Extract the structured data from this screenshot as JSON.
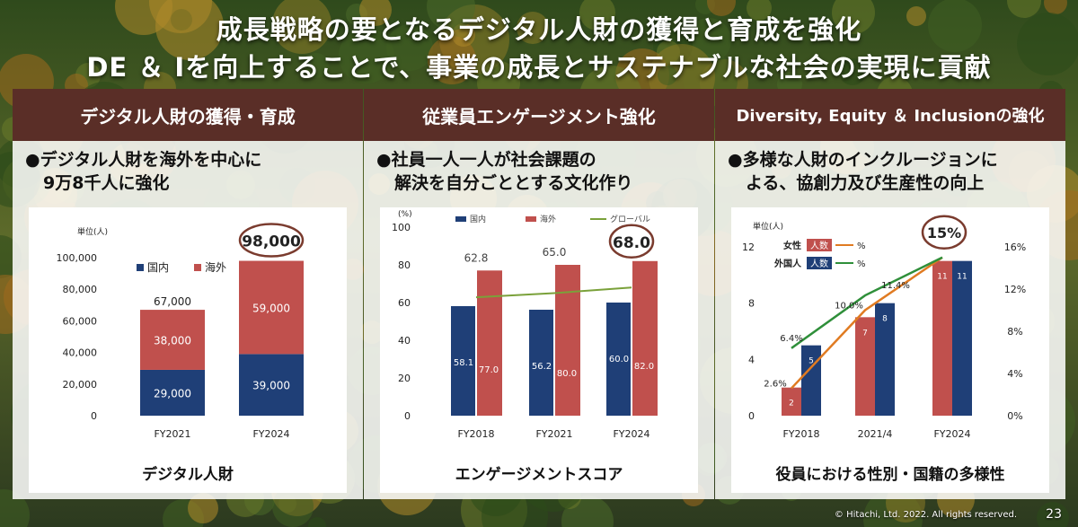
{
  "title": {
    "line1": "成長戦略の要となるデジタル人財の獲得と育成を強化",
    "line2": "DE ＆ Iを向上することで、事業の成長とサステナブルな社会の実現に貢献"
  },
  "panels": [
    {
      "header": "デジタル人財の獲得・育成",
      "bullet_line1": "●デジタル人財を海外を中心に",
      "bullet_line2": "9万8千人に強化",
      "card_label": "デジタル人財"
    },
    {
      "header": "従業員エンゲージメント強化",
      "bullet_line1": "●社員一人一人が社会課題の",
      "bullet_line2": "解決を自分ごととする文化作り",
      "card_label": "エンゲージメントスコア"
    },
    {
      "header": "Diversity, Equity ＆ Inclusionの強化",
      "bullet_line1": "●多様な人財のインクルージョンに",
      "bullet_line2": "よる、協創力及び生産性の向上",
      "card_label": "役員における性別・国籍の多様性"
    }
  ],
  "colors": {
    "domestic": "#1f3f77",
    "overseas": "#c0504d",
    "global_line": "#7aa13a",
    "women_line": "#e07b22",
    "foreign_line": "#2f8f3a",
    "circle": "#7a3b2e",
    "header_bg": "#5a2e27"
  },
  "chart_data": [
    {
      "type": "bar",
      "stacked": true,
      "unit_label": "単位(人)",
      "categories": [
        "FY2021",
        "FY2024"
      ],
      "series": [
        {
          "name": "国内",
          "values": [
            29000,
            39000
          ],
          "labels": [
            "29,000",
            "39,000"
          ]
        },
        {
          "name": "海外",
          "values": [
            38000,
            59000
          ],
          "labels": [
            "38,000",
            "59,000"
          ]
        }
      ],
      "totals": [
        "67,000",
        "98,000"
      ],
      "highlight": "98,000",
      "ylim": [
        0,
        100000
      ],
      "yticks": [
        "0",
        "20,000",
        "40,000",
        "60,000",
        "80,000",
        "100,000"
      ],
      "legend_position": "inside-top-left"
    },
    {
      "type": "bar",
      "unit_label": "(%)",
      "categories": [
        "FY2018",
        "FY2021",
        "FY2024"
      ],
      "series": [
        {
          "name": "国内",
          "values": [
            58.1,
            56.2,
            60.0
          ],
          "labels": [
            "58.1",
            "56.2",
            "60.0"
          ]
        },
        {
          "name": "海外",
          "values": [
            77.0,
            80.0,
            82.0
          ],
          "labels": [
            "77.0",
            "80.0",
            "82.0"
          ]
        },
        {
          "name": "グローバル",
          "type": "line",
          "values": [
            62.8,
            65.0,
            68.0
          ],
          "labels": [
            "62.8",
            "65.0",
            "68.0"
          ]
        }
      ],
      "highlight": "68.0",
      "ylim": [
        0,
        100
      ],
      "yticks": [
        "0",
        "20",
        "40",
        "60",
        "80",
        "100"
      ],
      "legend_position": "top"
    },
    {
      "type": "bar",
      "unit_label": "単位(人)",
      "categories": [
        "FY2018",
        "2021/4",
        "FY2024"
      ],
      "series": [
        {
          "name": "女性",
          "values": [
            2,
            7,
            11
          ],
          "labels": [
            "2",
            "7",
            "11"
          ]
        },
        {
          "name": "外国人",
          "values": [
            5,
            8,
            11
          ],
          "labels": [
            "5",
            "8",
            "11"
          ]
        }
      ],
      "lines": [
        {
          "name": "女性",
          "axis": "right",
          "values": [
            2.6,
            10.0,
            15
          ],
          "labels": [
            "2.6%",
            "10.0%",
            ""
          ]
        },
        {
          "name": "外国人",
          "axis": "right",
          "values": [
            6.4,
            11.4,
            15
          ],
          "labels": [
            "6.4%",
            "11.4%",
            ""
          ]
        }
      ],
      "legend": [
        {
          "label": "女性",
          "tag": "人数",
          "unit": "%"
        },
        {
          "label": "外国人",
          "tag": "人数",
          "unit": "%"
        }
      ],
      "highlight": "15%",
      "ylim": [
        0,
        12
      ],
      "yticks": [
        "0",
        "4",
        "8",
        "12"
      ],
      "y2lim": [
        0,
        16
      ],
      "y2ticks": [
        "0%",
        "4%",
        "8%",
        "12%",
        "16%"
      ]
    }
  ],
  "footer": {
    "copyright": "© Hitachi, Ltd. 2022. All rights reserved.",
    "page_number": "23"
  }
}
